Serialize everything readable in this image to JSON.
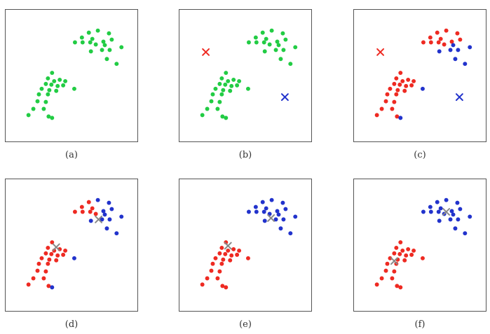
{
  "colors": {
    "unassigned": "#22cc44",
    "cluster_red": "#ee2a22",
    "cluster_blue": "#2233cc",
    "border": "#555555"
  },
  "chart_data": {
    "type": "scatter",
    "panels": [
      {
        "label": "(a)",
        "points": [
          [
            120,
            33
          ],
          [
            133,
            30
          ],
          [
            149,
            34
          ],
          [
            110,
            40
          ],
          [
            125,
            42
          ],
          [
            141,
            46
          ],
          [
            153,
            43
          ],
          [
            100,
            47
          ],
          [
            111,
            47
          ],
          [
            122,
            47
          ],
          [
            130,
            50
          ],
          [
            143,
            51
          ],
          [
            167,
            54
          ],
          [
            139,
            58
          ],
          [
            150,
            58
          ],
          [
            123,
            60
          ],
          [
            146,
            71
          ],
          [
            160,
            78
          ],
          [
            67,
            91
          ],
          [
            61,
            99
          ],
          [
            70,
            103
          ],
          [
            78,
            101
          ],
          [
            86,
            103
          ],
          [
            58,
            107
          ],
          [
            66,
            108
          ],
          [
            75,
            110
          ],
          [
            83,
            109
          ],
          [
            99,
            114
          ],
          [
            52,
            114
          ],
          [
            63,
            116
          ],
          [
            73,
            117
          ],
          [
            48,
            122
          ],
          [
            61,
            122
          ],
          [
            46,
            132
          ],
          [
            58,
            133
          ],
          [
            40,
            143
          ],
          [
            55,
            143
          ],
          [
            33,
            152
          ],
          [
            62,
            154
          ],
          [
            67,
            156
          ]
        ],
        "point_colors": "g",
        "centroids": []
      },
      {
        "label": "(b)",
        "points": [
          [
            120,
            33
          ],
          [
            133,
            30
          ],
          [
            149,
            34
          ],
          [
            110,
            40
          ],
          [
            125,
            42
          ],
          [
            141,
            46
          ],
          [
            153,
            43
          ],
          [
            100,
            47
          ],
          [
            111,
            47
          ],
          [
            122,
            47
          ],
          [
            130,
            50
          ],
          [
            143,
            51
          ],
          [
            167,
            54
          ],
          [
            139,
            58
          ],
          [
            150,
            58
          ],
          [
            123,
            60
          ],
          [
            146,
            71
          ],
          [
            160,
            78
          ],
          [
            67,
            91
          ],
          [
            61,
            99
          ],
          [
            70,
            103
          ],
          [
            78,
            101
          ],
          [
            86,
            103
          ],
          [
            58,
            107
          ],
          [
            66,
            108
          ],
          [
            75,
            110
          ],
          [
            83,
            109
          ],
          [
            99,
            114
          ],
          [
            52,
            114
          ],
          [
            63,
            116
          ],
          [
            73,
            117
          ],
          [
            48,
            122
          ],
          [
            61,
            122
          ],
          [
            46,
            132
          ],
          [
            58,
            133
          ],
          [
            40,
            143
          ],
          [
            55,
            143
          ],
          [
            33,
            152
          ],
          [
            62,
            154
          ],
          [
            67,
            156
          ]
        ],
        "point_colors": "g",
        "centroids": [
          {
            "x": 38,
            "y": 61,
            "color": "r"
          },
          {
            "x": 152,
            "y": 126,
            "color": "b"
          }
        ]
      },
      {
        "label": "(c)",
        "points": [
          [
            120,
            33
          ],
          [
            133,
            30
          ],
          [
            149,
            34
          ],
          [
            110,
            40
          ],
          [
            125,
            42
          ],
          [
            141,
            46
          ],
          [
            153,
            43
          ],
          [
            100,
            47
          ],
          [
            111,
            47
          ],
          [
            122,
            47
          ],
          [
            130,
            50
          ],
          [
            143,
            51
          ],
          [
            167,
            54
          ],
          [
            139,
            58
          ],
          [
            150,
            58
          ],
          [
            123,
            60
          ],
          [
            146,
            71
          ],
          [
            160,
            78
          ],
          [
            67,
            91
          ],
          [
            61,
            99
          ],
          [
            70,
            103
          ],
          [
            78,
            101
          ],
          [
            86,
            103
          ],
          [
            58,
            107
          ],
          [
            66,
            108
          ],
          [
            75,
            110
          ],
          [
            83,
            109
          ],
          [
            99,
            114
          ],
          [
            52,
            114
          ],
          [
            63,
            116
          ],
          [
            73,
            117
          ],
          [
            48,
            122
          ],
          [
            61,
            122
          ],
          [
            46,
            132
          ],
          [
            58,
            133
          ],
          [
            40,
            143
          ],
          [
            55,
            143
          ],
          [
            33,
            152
          ],
          [
            62,
            154
          ],
          [
            67,
            156
          ]
        ],
        "point_colors": "rrrrrrrrrrrbbbbbbbrrrrrrrrrbrrrrrrrrrrrb",
        "centroids": [
          {
            "x": 38,
            "y": 61,
            "color": "r"
          },
          {
            "x": 152,
            "y": 126,
            "color": "b"
          }
        ]
      },
      {
        "label": "(d)",
        "points": [
          [
            120,
            33
          ],
          [
            133,
            30
          ],
          [
            149,
            34
          ],
          [
            110,
            40
          ],
          [
            125,
            42
          ],
          [
            141,
            46
          ],
          [
            153,
            43
          ],
          [
            100,
            47
          ],
          [
            111,
            47
          ],
          [
            122,
            47
          ],
          [
            130,
            50
          ],
          [
            143,
            51
          ],
          [
            167,
            54
          ],
          [
            139,
            58
          ],
          [
            150,
            58
          ],
          [
            123,
            60
          ],
          [
            146,
            71
          ],
          [
            160,
            78
          ],
          [
            67,
            91
          ],
          [
            61,
            99
          ],
          [
            70,
            103
          ],
          [
            78,
            101
          ],
          [
            86,
            103
          ],
          [
            58,
            107
          ],
          [
            66,
            108
          ],
          [
            75,
            110
          ],
          [
            83,
            109
          ],
          [
            99,
            114
          ],
          [
            52,
            114
          ],
          [
            63,
            116
          ],
          [
            73,
            117
          ],
          [
            48,
            122
          ],
          [
            61,
            122
          ],
          [
            46,
            132
          ],
          [
            58,
            133
          ],
          [
            40,
            143
          ],
          [
            55,
            143
          ],
          [
            33,
            152
          ],
          [
            62,
            154
          ],
          [
            67,
            156
          ]
        ],
        "point_colors": "rbbrrbbrrrrbbbbbbbrrrrrrrrrbrrrrrrrrrrrb",
        "centroids": [
          {
            "x": 73,
            "y": 98,
            "color": "gray"
          },
          {
            "x": 134,
            "y": 58,
            "color": "gray"
          }
        ]
      },
      {
        "label": "(e)",
        "points": [
          [
            120,
            33
          ],
          [
            133,
            30
          ],
          [
            149,
            34
          ],
          [
            110,
            40
          ],
          [
            125,
            42
          ],
          [
            141,
            46
          ],
          [
            153,
            43
          ],
          [
            100,
            47
          ],
          [
            111,
            47
          ],
          [
            122,
            47
          ],
          [
            130,
            50
          ],
          [
            143,
            51
          ],
          [
            167,
            54
          ],
          [
            139,
            58
          ],
          [
            150,
            58
          ],
          [
            123,
            60
          ],
          [
            146,
            71
          ],
          [
            160,
            78
          ],
          [
            67,
            91
          ],
          [
            61,
            99
          ],
          [
            70,
            103
          ],
          [
            78,
            101
          ],
          [
            86,
            103
          ],
          [
            58,
            107
          ],
          [
            66,
            108
          ],
          [
            75,
            110
          ],
          [
            83,
            109
          ],
          [
            99,
            114
          ],
          [
            52,
            114
          ],
          [
            63,
            116
          ],
          [
            73,
            117
          ],
          [
            48,
            122
          ],
          [
            61,
            122
          ],
          [
            46,
            132
          ],
          [
            58,
            133
          ],
          [
            40,
            143
          ],
          [
            55,
            143
          ],
          [
            33,
            152
          ],
          [
            62,
            154
          ],
          [
            67,
            156
          ]
        ],
        "point_colors": "bbbbbbbbbbbbbbbbbbrrrrrrrrrrrrrrrrrrrrrr",
        "centroids": [
          {
            "x": 70,
            "y": 96,
            "color": "gray"
          },
          {
            "x": 132,
            "y": 56,
            "color": "gray"
          }
        ]
      },
      {
        "label": "(f)",
        "points": [
          [
            120,
            33
          ],
          [
            133,
            30
          ],
          [
            149,
            34
          ],
          [
            110,
            40
          ],
          [
            125,
            42
          ],
          [
            141,
            46
          ],
          [
            153,
            43
          ],
          [
            100,
            47
          ],
          [
            111,
            47
          ],
          [
            122,
            47
          ],
          [
            130,
            50
          ],
          [
            143,
            51
          ],
          [
            167,
            54
          ],
          [
            139,
            58
          ],
          [
            150,
            58
          ],
          [
            123,
            60
          ],
          [
            146,
            71
          ],
          [
            160,
            78
          ],
          [
            67,
            91
          ],
          [
            61,
            99
          ],
          [
            70,
            103
          ],
          [
            78,
            101
          ],
          [
            86,
            103
          ],
          [
            58,
            107
          ],
          [
            66,
            108
          ],
          [
            75,
            110
          ],
          [
            83,
            109
          ],
          [
            99,
            114
          ],
          [
            52,
            114
          ],
          [
            63,
            116
          ],
          [
            73,
            117
          ],
          [
            48,
            122
          ],
          [
            61,
            122
          ],
          [
            46,
            132
          ],
          [
            58,
            133
          ],
          [
            40,
            143
          ],
          [
            55,
            143
          ],
          [
            33,
            152
          ],
          [
            62,
            154
          ],
          [
            67,
            156
          ]
        ],
        "point_colors": "bbbbbbbbbbbbbbbbbbrrrrrrrrrrrrrrrrrrrrrr",
        "centroids": [
          {
            "x": 58,
            "y": 118,
            "color": "gray"
          },
          {
            "x": 133,
            "y": 47,
            "color": "gray"
          }
        ]
      }
    ]
  }
}
